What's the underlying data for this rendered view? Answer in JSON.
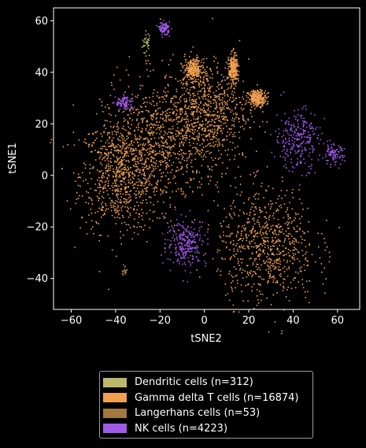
{
  "chart_data": {
    "type": "scatter",
    "title": "",
    "xlabel": "tSNE2",
    "ylabel": "tSNE1",
    "xlim": [
      -68,
      70
    ],
    "ylim": [
      -52,
      65
    ],
    "xticks": [
      -60,
      -40,
      -20,
      0,
      20,
      40,
      60
    ],
    "yticks": [
      -40,
      -20,
      0,
      20,
      40,
      60
    ],
    "grid": false,
    "legend_position": "bottom",
    "series": [
      {
        "name": "Dendritic cells (n=312)",
        "color": "#bdb76b",
        "clusters": [
          {
            "center": [
              -26,
              51
            ],
            "spread": [
              1.0,
              2.5
            ],
            "points": 312
          }
        ]
      },
      {
        "name": "Gamma delta T cells (n=16874)",
        "color": "#f0a050",
        "clusters": [
          {
            "center": [
              -38,
              0
            ],
            "spread": [
              9,
              11
            ],
            "points": 16874
          },
          {
            "center": [
              -20,
              12
            ],
            "spread": [
              13,
              12
            ],
            "points": 16874
          },
          {
            "center": [
              0,
              25
            ],
            "spread": [
              10,
              10
            ],
            "points": 16874
          },
          {
            "center": [
              28,
              -27
            ],
            "spread": [
              11,
              11
            ],
            "points": 16874
          },
          {
            "center": [
              -5,
              41
            ],
            "spread": [
              2,
              2
            ],
            "points": 16874
          },
          {
            "center": [
              13,
              41
            ],
            "spread": [
              1,
              3
            ],
            "points": 16874
          },
          {
            "center": [
              24,
              30
            ],
            "spread": [
              2,
              1.5
            ],
            "points": 16874
          }
        ]
      },
      {
        "name": "Langerhans cells (n=53)",
        "color": "#a07840",
        "clusters": [
          {
            "center": [
              -36,
              -37
            ],
            "spread": [
              0.6,
              1
            ],
            "points": 53
          }
        ]
      },
      {
        "name": "NK cells (n=4223)",
        "color": "#a05ae8",
        "clusters": [
          {
            "center": [
              42,
              14
            ],
            "spread": [
              5,
              6
            ],
            "points": 4223
          },
          {
            "center": [
              58,
              8
            ],
            "spread": [
              2.5,
              2
            ],
            "points": 4223
          },
          {
            "center": [
              -8,
              -26
            ],
            "spread": [
              4.5,
              4.5
            ],
            "points": 4223
          },
          {
            "center": [
              -36,
              28
            ],
            "spread": [
              2,
              1.5
            ],
            "points": 4223
          },
          {
            "center": [
              -18,
              57
            ],
            "spread": [
              1.2,
              1.2
            ],
            "points": 4223
          }
        ]
      }
    ]
  }
}
